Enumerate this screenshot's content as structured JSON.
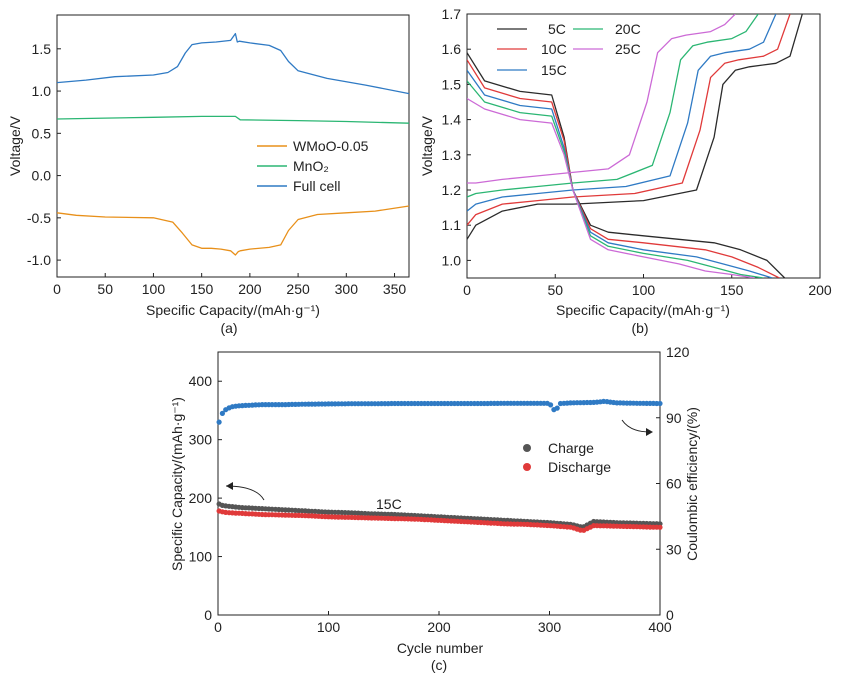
{
  "chart_data": [
    {
      "panel": "(a)",
      "type": "line",
      "xlabel": "Specific Capacity/(mAh·g⁻¹)",
      "ylabel": "Voltage/V",
      "xlim": [
        0,
        365
      ],
      "ylim": [
        -1.2,
        1.9
      ],
      "xticks": [
        0,
        50,
        100,
        150,
        200,
        250,
        300,
        350
      ],
      "yticks": [
        -1.0,
        -0.5,
        0.0,
        0.5,
        1.0,
        1.5
      ],
      "ytick_labels": [
        "-1.0",
        "-0.5",
        "0.0",
        "0.5",
        "1.0",
        "1.5"
      ],
      "legend": {
        "placement": "right"
      },
      "series": [
        {
          "name": "WMoO-0.05",
          "color": "#e8901a",
          "x": [
            0,
            20,
            50,
            100,
            120,
            130,
            140,
            150,
            160,
            170,
            180,
            185,
            188,
            190,
            200,
            220,
            232,
            240,
            250,
            270,
            300,
            330,
            365
          ],
          "y": [
            -0.44,
            -0.47,
            -0.49,
            -0.5,
            -0.55,
            -0.68,
            -0.82,
            -0.86,
            -0.86,
            -0.87,
            -0.89,
            -0.94,
            -0.9,
            -0.89,
            -0.87,
            -0.85,
            -0.82,
            -0.65,
            -0.52,
            -0.46,
            -0.44,
            -0.42,
            -0.36
          ]
        },
        {
          "name": "MnO₂",
          "color": "#2bb673",
          "x": [
            0,
            50,
            100,
            150,
            185,
            190,
            250,
            300,
            365
          ],
          "y": [
            0.67,
            0.68,
            0.69,
            0.7,
            0.7,
            0.66,
            0.65,
            0.64,
            0.62
          ]
        },
        {
          "name": "Full cell",
          "color": "#2f7ac4",
          "x": [
            0,
            30,
            60,
            100,
            115,
            125,
            133,
            140,
            150,
            165,
            180,
            185,
            187,
            189,
            200,
            220,
            232,
            240,
            250,
            280,
            320,
            365
          ],
          "y": [
            1.1,
            1.13,
            1.17,
            1.19,
            1.22,
            1.29,
            1.45,
            1.55,
            1.57,
            1.58,
            1.6,
            1.68,
            1.58,
            1.59,
            1.57,
            1.54,
            1.48,
            1.35,
            1.24,
            1.15,
            1.07,
            0.97
          ]
        }
      ]
    },
    {
      "panel": "(b)",
      "type": "line",
      "xlabel": "Specific Capacity/(mAh·g⁻¹)",
      "ylabel": "Voltage/V",
      "xlim": [
        0,
        200
      ],
      "ylim": [
        0.95,
        1.7
      ],
      "xticks": [
        0,
        50,
        100,
        150,
        200
      ],
      "yticks": [
        1.0,
        1.1,
        1.2,
        1.3,
        1.4,
        1.5,
        1.6,
        1.7
      ],
      "ytick_labels": [
        "1.0",
        "1.1",
        "1.2",
        "1.3",
        "1.4",
        "1.5",
        "1.6",
        "1.7"
      ],
      "legend": {
        "placement": "top-left",
        "columns": 2
      },
      "series": [
        {
          "name": "5C",
          "color": "#2b2b2b",
          "charge": {
            "x": [
              0,
              5,
              20,
              40,
              60,
              100,
              130,
              140,
              145,
              152,
              160,
              175,
              183,
              190
            ],
            "y": [
              1.06,
              1.1,
              1.14,
              1.16,
              1.16,
              1.17,
              1.2,
              1.35,
              1.5,
              1.54,
              1.55,
              1.56,
              1.58,
              1.7
            ]
          },
          "discharge": {
            "x": [
              0,
              10,
              30,
              48,
              55,
              60,
              70,
              80,
              100,
              140,
              155,
              170,
              180
            ],
            "y": [
              1.59,
              1.51,
              1.48,
              1.47,
              1.35,
              1.2,
              1.1,
              1.08,
              1.07,
              1.05,
              1.03,
              1.0,
              0.95
            ]
          }
        },
        {
          "name": "10C",
          "color": "#e03a3a",
          "charge": {
            "x": [
              0,
              5,
              20,
              40,
              60,
              95,
              122,
              132,
              138,
              146,
              154,
              168,
              176,
              183
            ],
            "y": [
              1.1,
              1.13,
              1.16,
              1.17,
              1.18,
              1.19,
              1.22,
              1.37,
              1.52,
              1.56,
              1.57,
              1.58,
              1.6,
              1.7
            ]
          },
          "discharge": {
            "x": [
              0,
              10,
              30,
              48,
              55,
              60,
              70,
              80,
              100,
              135,
              150,
              165,
              177
            ],
            "y": [
              1.57,
              1.49,
              1.46,
              1.45,
              1.34,
              1.2,
              1.09,
              1.06,
              1.05,
              1.03,
              1.01,
              0.98,
              0.95
            ]
          }
        },
        {
          "name": "15C",
          "color": "#2f7ac4",
          "charge": {
            "x": [
              0,
              5,
              20,
              40,
              60,
              90,
              115,
              125,
              131,
              138,
              146,
              160,
              168,
              175
            ],
            "y": [
              1.14,
              1.16,
              1.18,
              1.19,
              1.2,
              1.21,
              1.24,
              1.39,
              1.54,
              1.58,
              1.59,
              1.6,
              1.62,
              1.7
            ]
          },
          "discharge": {
            "x": [
              0,
              10,
              30,
              48,
              55,
              60,
              70,
              80,
              100,
              130,
              145,
              160,
              173
            ],
            "y": [
              1.54,
              1.47,
              1.44,
              1.43,
              1.32,
              1.2,
              1.08,
              1.05,
              1.03,
              1.01,
              0.99,
              0.97,
              0.95
            ]
          }
        },
        {
          "name": "20C",
          "color": "#2bb673",
          "charge": {
            "x": [
              0,
              5,
              20,
              40,
              60,
              85,
              105,
              115,
              121,
              128,
              136,
              150,
              158,
              165
            ],
            "y": [
              1.18,
              1.19,
              1.2,
              1.21,
              1.22,
              1.23,
              1.27,
              1.42,
              1.57,
              1.61,
              1.62,
              1.63,
              1.65,
              1.7
            ]
          },
          "discharge": {
            "x": [
              0,
              10,
              30,
              48,
              55,
              60,
              70,
              80,
              100,
              125,
              140,
              155,
              168
            ],
            "y": [
              1.51,
              1.45,
              1.42,
              1.41,
              1.31,
              1.2,
              1.07,
              1.04,
              1.02,
              1.0,
              0.98,
              0.96,
              0.95
            ]
          }
        },
        {
          "name": "25C",
          "color": "#cc6ad6",
          "charge": {
            "x": [
              0,
              5,
              20,
              40,
              60,
              80,
              92,
              102,
              108,
              116,
              124,
              138,
              146,
              152
            ],
            "y": [
              1.22,
              1.22,
              1.23,
              1.24,
              1.25,
              1.26,
              1.3,
              1.45,
              1.59,
              1.63,
              1.64,
              1.65,
              1.67,
              1.7
            ]
          },
          "discharge": {
            "x": [
              0,
              10,
              30,
              48,
              55,
              60,
              70,
              80,
              100,
              120,
              135,
              150,
              163
            ],
            "y": [
              1.46,
              1.43,
              1.4,
              1.39,
              1.3,
              1.2,
              1.06,
              1.03,
              1.01,
              0.99,
              0.97,
              0.96,
              0.95
            ]
          }
        }
      ]
    },
    {
      "panel": "(c)",
      "type": "scatter",
      "xlabel": "Cycle number",
      "ylabel": "Specific Capacity/(mAh·g⁻¹)",
      "y2label": "Coulombic efficiency/(%)",
      "xlim": [
        0,
        400
      ],
      "ylim": [
        0,
        450
      ],
      "y2lim": [
        0,
        120
      ],
      "xticks": [
        0,
        100,
        200,
        300,
        400
      ],
      "yticks": [
        0,
        100,
        200,
        300,
        400
      ],
      "y2ticks": [
        0,
        30,
        60,
        90,
        120
      ],
      "annotation": "15C",
      "legend": {
        "placement": "right"
      },
      "series": [
        {
          "name": "Charge",
          "color": "#555555",
          "axis": "left",
          "x": [
            1,
            3,
            5,
            10,
            20,
            40,
            60,
            80,
            100,
            120,
            140,
            160,
            180,
            200,
            220,
            240,
            260,
            280,
            300,
            320,
            330,
            340,
            360,
            380,
            400
          ],
          "y": [
            190,
            188,
            187,
            186,
            184,
            182,
            180,
            178,
            176,
            175,
            173,
            172,
            170,
            168,
            166,
            164,
            162,
            160,
            158,
            155,
            150,
            160,
            158,
            157,
            156
          ]
        },
        {
          "name": "Discharge",
          "color": "#e03a3a",
          "axis": "left",
          "x": [
            1,
            3,
            5,
            10,
            20,
            40,
            60,
            80,
            100,
            120,
            140,
            160,
            180,
            200,
            220,
            240,
            260,
            280,
            300,
            320,
            330,
            340,
            360,
            380,
            400
          ],
          "y": [
            178,
            177,
            176,
            175,
            174,
            172,
            171,
            170,
            168,
            167,
            166,
            165,
            164,
            162,
            160,
            158,
            156,
            155,
            153,
            150,
            144,
            153,
            152,
            151,
            150
          ]
        },
        {
          "name": "Coulombic efficiency",
          "color": "#2f7ac4",
          "axis": "right",
          "x": [
            1,
            3,
            5,
            8,
            12,
            20,
            40,
            60,
            80,
            100,
            120,
            140,
            160,
            180,
            200,
            220,
            240,
            260,
            280,
            300,
            305,
            310,
            320,
            340,
            350,
            360,
            380,
            400
          ],
          "y": [
            88,
            91,
            93,
            94,
            95,
            95.5,
            96,
            96,
            96.2,
            96.3,
            96.4,
            96.4,
            96.5,
            96.5,
            96.5,
            96.5,
            96.5,
            96.6,
            96.6,
            96.6,
            93,
            96.5,
            96.8,
            97,
            97.5,
            96.8,
            96.6,
            96.5
          ]
        }
      ]
    }
  ]
}
